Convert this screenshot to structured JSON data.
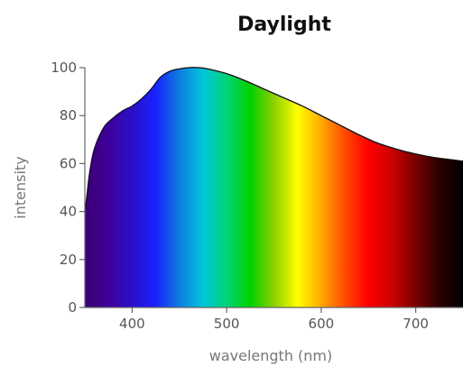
{
  "chart_data": {
    "type": "area",
    "title": "Daylight",
    "xlabel": "wavelength (nm)",
    "ylabel": "intensity",
    "xlim": [
      350,
      750
    ],
    "ylim": [
      0,
      100
    ],
    "xticks": [
      400,
      500,
      600,
      700
    ],
    "yticks": [
      0,
      20,
      40,
      60,
      80,
      100
    ],
    "grid": false,
    "fill": "visible spectrum gradient",
    "series": [
      {
        "x": [
          350,
          352,
          355,
          360,
          370,
          380,
          390,
          400,
          410,
          420,
          430,
          440,
          450,
          460,
          470,
          480,
          500,
          520,
          540,
          560,
          580,
          600,
          620,
          640,
          660,
          680,
          700,
          720,
          740,
          750
        ],
        "values": [
          40,
          46,
          56,
          66,
          75,
          79,
          82,
          84,
          87,
          91,
          96,
          98.5,
          99.5,
          100,
          100,
          99.5,
          97.5,
          94.5,
          91,
          87.5,
          84,
          80,
          76,
          72,
          68.5,
          66,
          64,
          62.5,
          61.5,
          61
        ]
      }
    ],
    "colors": {
      "spectrum": [
        "#3a0070",
        "#3f009a",
        "#2a10c8",
        "#1a22ff",
        "#0f7be0",
        "#00c6dc",
        "#00d478",
        "#00d200",
        "#8ad000",
        "#ffff00",
        "#ffaa00",
        "#ff4a00",
        "#ff0000",
        "#cc0000",
        "#7a0000",
        "#2a0000",
        "#000000"
      ],
      "outline": "#111111"
    }
  }
}
